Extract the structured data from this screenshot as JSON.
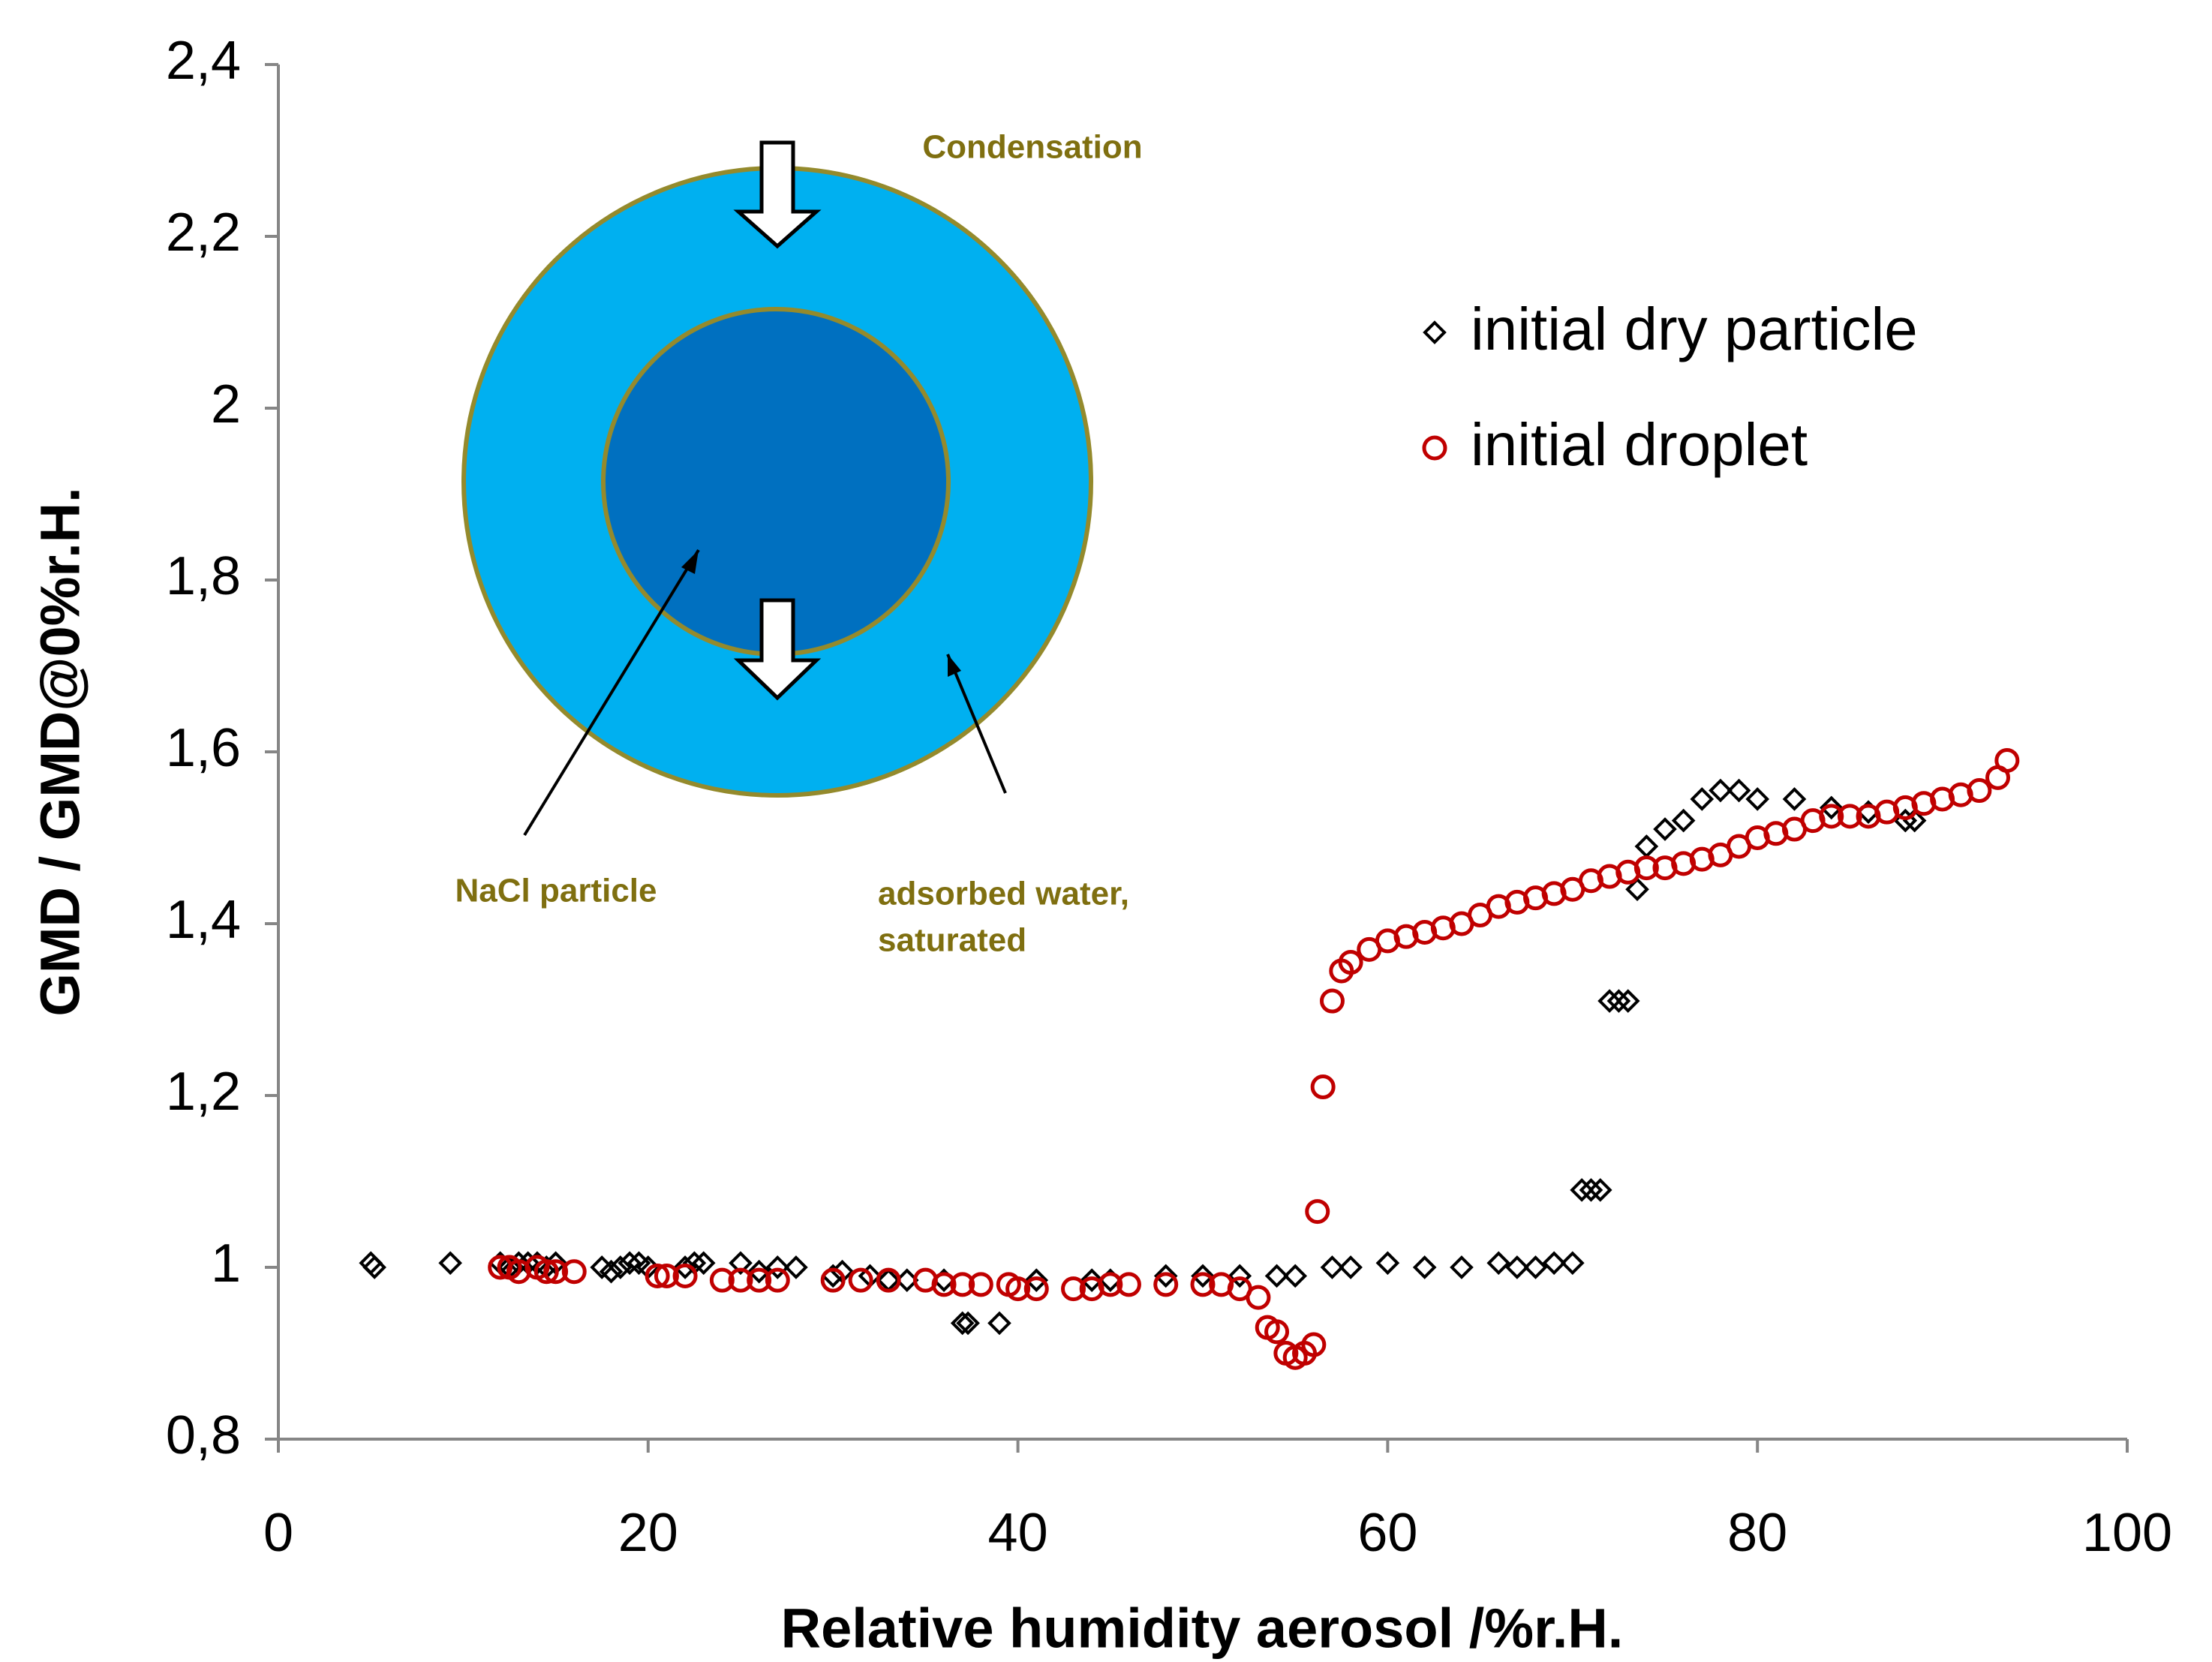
{
  "chart_data": {
    "type": "scatter",
    "x_label": "Relative humidity aerosol /%r.H.",
    "y_label": "GMD / GMD@0%r.H.",
    "annotations": [
      "Condensation",
      "NaCl particle",
      "adsorbed water,",
      "saturated"
    ],
    "xlim": [
      0,
      100
    ],
    "xticks": [
      0,
      20,
      40,
      60,
      80,
      100
    ],
    "ylim": [
      0.8,
      2.4
    ],
    "yticks": [
      {
        "value": 0.8,
        "label": "0,8"
      },
      1,
      {
        "value": 1.2,
        "label": "1,2"
      },
      {
        "value": 1.4,
        "label": "1,4"
      },
      {
        "value": 1.6,
        "label": "1,6"
      },
      {
        "value": 1.8,
        "label": "1,8"
      },
      2,
      {
        "value": 2.2,
        "label": "2,2"
      },
      {
        "value": 2.4,
        "label": "2,4"
      }
    ],
    "series": [
      {
        "name": "initial dry particle",
        "color": "#000000",
        "marker": "diamond",
        "x": [
          5,
          5.2,
          9.3,
          12,
          12.5,
          13,
          13.5,
          14,
          14.5,
          15,
          17.5,
          18,
          18.5,
          19,
          19.5,
          20,
          22,
          22.5,
          23,
          25,
          26,
          27,
          28,
          30,
          30.5,
          32,
          33,
          34,
          36,
          37,
          37.3,
          39,
          41,
          44,
          45,
          48,
          50,
          52,
          54,
          55,
          57,
          58,
          60,
          62,
          64,
          66,
          67,
          68,
          69,
          70,
          70.5,
          71,
          71.5,
          72,
          72.5,
          73,
          73.5,
          74,
          75,
          76,
          77,
          78,
          79,
          80,
          82,
          84,
          86,
          88,
          88.5
        ],
        "values": [
          1.005,
          1.0,
          1.005,
          1.005,
          1.0,
          1.005,
          1.005,
          1.005,
          1.0,
          1.005,
          1.0,
          0.995,
          1.0,
          1.005,
          1.005,
          1.0,
          1.0,
          1.005,
          1.005,
          1.005,
          0.995,
          1.0,
          1.0,
          0.99,
          0.995,
          0.99,
          0.985,
          0.985,
          0.985,
          0.935,
          0.935,
          0.935,
          0.985,
          0.985,
          0.985,
          0.99,
          0.99,
          0.99,
          0.99,
          0.99,
          1.0,
          1.0,
          1.005,
          1.0,
          1.0,
          1.005,
          1.0,
          1.0,
          1.005,
          1.005,
          1.09,
          1.09,
          1.09,
          1.31,
          1.31,
          1.31,
          1.44,
          1.49,
          1.51,
          1.52,
          1.545,
          1.555,
          1.555,
          1.545,
          1.545,
          1.535,
          1.53,
          1.52,
          1.52
        ]
      },
      {
        "name": "initial droplet",
        "color": "#c00000",
        "marker": "circle",
        "x": [
          12,
          12.5,
          13,
          14,
          14.5,
          15,
          16,
          20.5,
          21,
          22,
          24,
          25,
          26,
          27,
          30,
          31.5,
          33,
          35,
          36,
          37,
          38,
          39.5,
          40,
          41,
          43,
          44,
          45,
          46,
          48,
          50,
          51,
          52,
          53,
          53.5,
          54,
          54.5,
          55,
          55.5,
          56,
          56.2,
          56.5,
          57,
          57.5,
          58,
          59,
          60,
          61,
          62,
          63,
          64,
          65,
          66,
          67,
          68,
          69,
          70,
          71,
          72,
          73,
          74,
          75,
          76,
          77,
          78,
          79,
          80,
          81,
          82,
          83,
          84,
          85,
          86,
          87,
          88,
          89,
          90,
          91,
          92,
          93,
          93.5
        ],
        "values": [
          1.0,
          1.0,
          0.995,
          1.0,
          0.995,
          0.995,
          0.995,
          0.99,
          0.99,
          0.99,
          0.985,
          0.985,
          0.985,
          0.985,
          0.985,
          0.985,
          0.985,
          0.985,
          0.98,
          0.98,
          0.98,
          0.98,
          0.975,
          0.975,
          0.975,
          0.975,
          0.98,
          0.98,
          0.98,
          0.98,
          0.98,
          0.975,
          0.965,
          0.93,
          0.925,
          0.9,
          0.895,
          0.9,
          0.91,
          1.065,
          1.21,
          1.31,
          1.345,
          1.355,
          1.37,
          1.38,
          1.385,
          1.39,
          1.395,
          1.4,
          1.41,
          1.42,
          1.425,
          1.43,
          1.435,
          1.44,
          1.45,
          1.455,
          1.46,
          1.465,
          1.465,
          1.47,
          1.475,
          1.48,
          1.49,
          1.5,
          1.505,
          1.51,
          1.52,
          1.525,
          1.525,
          1.525,
          1.53,
          1.535,
          1.54,
          1.545,
          1.55,
          1.555,
          1.57,
          1.59
        ]
      }
    ],
    "legend": "upper right"
  }
}
